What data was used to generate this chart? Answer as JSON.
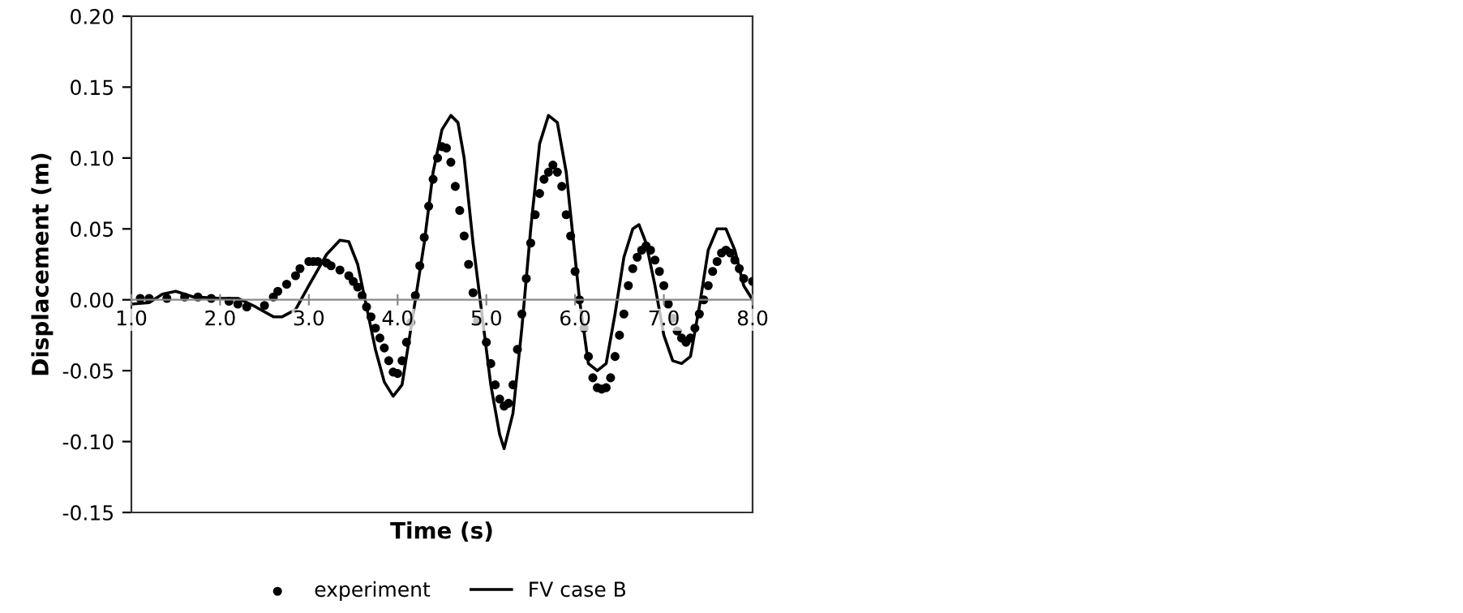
{
  "chart_data": {
    "type": "scatter",
    "xlabel": "Time (s)",
    "ylabel": "Displacement (m)",
    "xlim": [
      1.0,
      8.0
    ],
    "ylim": [
      -0.15,
      0.2
    ],
    "xticks": [
      {
        "value": 1,
        "label": "1.0"
      },
      {
        "value": 2,
        "label": "2.0"
      },
      {
        "value": 3,
        "label": "3.0"
      },
      {
        "value": 4,
        "label": "4.0"
      },
      {
        "value": 5,
        "label": "5.0"
      },
      {
        "value": 6,
        "label": "6.0"
      },
      {
        "value": 7,
        "label": "7.0"
      },
      {
        "value": 8,
        "label": "8.0"
      }
    ],
    "yticks": [
      {
        "value": -0.15,
        "label": "-0.15"
      },
      {
        "value": -0.1,
        "label": "-0.10"
      },
      {
        "value": -0.05,
        "label": "-0.05"
      },
      {
        "value": 0,
        "label": "0.00"
      },
      {
        "value": 0.05,
        "label": "0.05"
      },
      {
        "value": 0.1,
        "label": "0.10"
      },
      {
        "value": 0.15,
        "label": "0.15"
      },
      {
        "value": 0.2,
        "label": "0.20"
      }
    ],
    "grid": false,
    "legend": "bottom",
    "series": [
      {
        "name": "experiment",
        "marker": "circle",
        "color": "#000000",
        "x": [
          1.1,
          1.2,
          1.4,
          1.6,
          1.75,
          1.9,
          2.1,
          2.2,
          2.3,
          2.5,
          2.6,
          2.65,
          2.75,
          2.85,
          2.9,
          3.0,
          3.05,
          3.1,
          3.2,
          3.25,
          3.35,
          3.45,
          3.5,
          3.55,
          3.6,
          3.65,
          3.7,
          3.75,
          3.8,
          3.85,
          3.9,
          3.95,
          4.0,
          4.05,
          4.1,
          4.15,
          4.2,
          4.25,
          4.3,
          4.35,
          4.4,
          4.45,
          4.5,
          4.55,
          4.6,
          4.65,
          4.7,
          4.75,
          4.8,
          4.85,
          4.9,
          5.0,
          5.05,
          5.1,
          5.15,
          5.2,
          5.25,
          5.3,
          5.35,
          5.4,
          5.45,
          5.5,
          5.55,
          5.6,
          5.65,
          5.7,
          5.75,
          5.8,
          5.85,
          5.9,
          5.95,
          6.0,
          6.05,
          6.1,
          6.15,
          6.2,
          6.25,
          6.3,
          6.35,
          6.4,
          6.45,
          6.5,
          6.55,
          6.6,
          6.65,
          6.7,
          6.75,
          6.8,
          6.85,
          6.9,
          6.95,
          7.0,
          7.05,
          7.1,
          7.15,
          7.2,
          7.25,
          7.3,
          7.35,
          7.4,
          7.45,
          7.5,
          7.55,
          7.6,
          7.65,
          7.7,
          7.75,
          7.8,
          7.85,
          7.9,
          8.0
        ],
        "values": [
          0.001,
          0.001,
          0.001,
          0.002,
          0.002,
          0.001,
          -0.001,
          -0.003,
          -0.005,
          -0.004,
          0.002,
          0.006,
          0.011,
          0.017,
          0.022,
          0.027,
          0.027,
          0.027,
          0.026,
          0.024,
          0.021,
          0.017,
          0.013,
          0.009,
          0.003,
          -0.005,
          -0.012,
          -0.02,
          -0.027,
          -0.034,
          -0.043,
          -0.051,
          -0.052,
          -0.043,
          -0.03,
          -0.016,
          0.003,
          0.024,
          0.044,
          0.066,
          0.085,
          0.1,
          0.108,
          0.107,
          0.097,
          0.08,
          0.063,
          0.045,
          0.025,
          0.005,
          -0.015,
          -0.03,
          -0.045,
          -0.06,
          -0.07,
          -0.075,
          -0.073,
          -0.06,
          -0.035,
          -0.01,
          0.015,
          0.04,
          0.06,
          0.075,
          0.085,
          0.09,
          0.095,
          0.09,
          0.08,
          0.06,
          0.045,
          0.02,
          0.0,
          -0.02,
          -0.04,
          -0.055,
          -0.062,
          -0.063,
          -0.062,
          -0.055,
          -0.04,
          -0.025,
          -0.01,
          0.01,
          0.022,
          0.03,
          0.035,
          0.038,
          0.035,
          0.028,
          0.02,
          0.01,
          -0.003,
          -0.013,
          -0.022,
          -0.027,
          -0.03,
          -0.027,
          -0.02,
          -0.01,
          0.0,
          0.01,
          0.02,
          0.027,
          0.033,
          0.035,
          0.033,
          0.028,
          0.022,
          0.015,
          0.013
        ]
      },
      {
        "name": "FV case B",
        "type": "line",
        "marker": "none",
        "line_style": "solid",
        "color": "#000000",
        "x": [
          1.0,
          1.2,
          1.35,
          1.5,
          1.7,
          2.0,
          2.2,
          2.4,
          2.6,
          2.7,
          2.85,
          3.0,
          3.2,
          3.35,
          3.45,
          3.55,
          3.65,
          3.75,
          3.85,
          3.95,
          4.05,
          4.15,
          4.3,
          4.4,
          4.5,
          4.6,
          4.68,
          4.75,
          4.85,
          4.95,
          5.05,
          5.15,
          5.2,
          5.3,
          5.4,
          5.5,
          5.6,
          5.7,
          5.8,
          5.9,
          5.95,
          6.05,
          6.15,
          6.25,
          6.35,
          6.45,
          6.55,
          6.65,
          6.72,
          6.8,
          6.9,
          7.0,
          7.1,
          7.2,
          7.3,
          7.4,
          7.5,
          7.6,
          7.7,
          7.8,
          7.9,
          8.0
        ],
        "values": [
          -0.003,
          -0.002,
          0.004,
          0.006,
          0.002,
          0.001,
          0.001,
          -0.005,
          -0.012,
          -0.012,
          -0.007,
          0.01,
          0.032,
          0.042,
          0.041,
          0.025,
          -0.005,
          -0.035,
          -0.058,
          -0.068,
          -0.06,
          -0.02,
          0.04,
          0.09,
          0.12,
          0.13,
          0.125,
          0.1,
          0.04,
          -0.01,
          -0.06,
          -0.095,
          -0.105,
          -0.08,
          -0.02,
          0.05,
          0.11,
          0.13,
          0.125,
          0.09,
          0.06,
          0.0,
          -0.045,
          -0.05,
          -0.045,
          -0.01,
          0.03,
          0.05,
          0.053,
          0.04,
          0.01,
          -0.025,
          -0.043,
          -0.045,
          -0.04,
          -0.005,
          0.035,
          0.05,
          0.05,
          0.035,
          0.01,
          0.0
        ]
      }
    ]
  }
}
